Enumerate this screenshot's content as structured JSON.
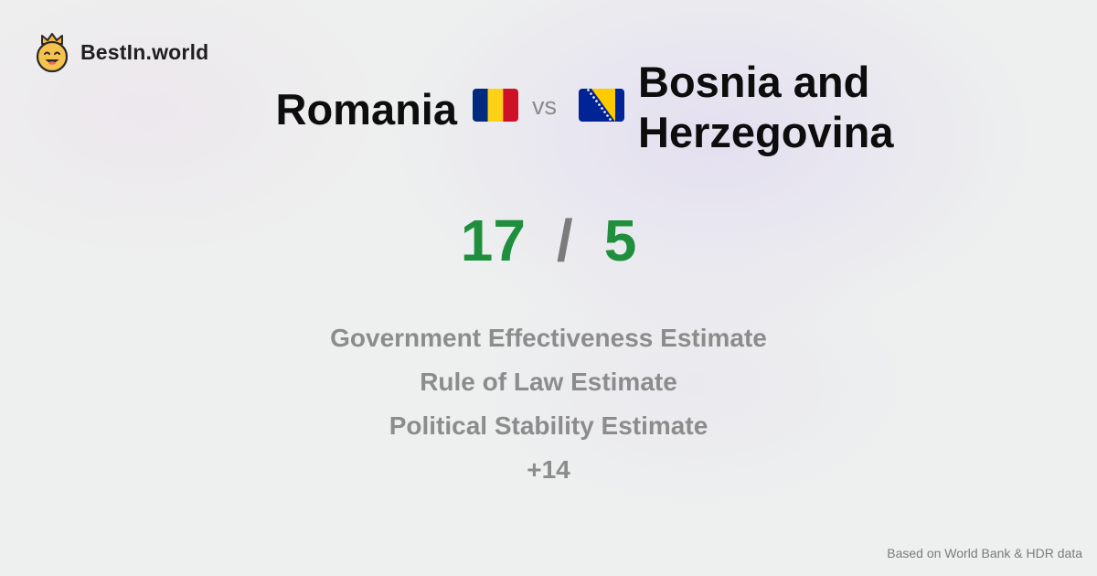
{
  "brand": {
    "name": "BestIn.world",
    "logo_icon": "crowned-smiley-icon"
  },
  "comparison": {
    "country1": {
      "name": "Romania",
      "flag_icon": "flag-romania-icon",
      "flag_colors": [
        "#002B7F",
        "#FCD116",
        "#CE1126"
      ]
    },
    "vs_label": "vs",
    "country2": {
      "name_line1": "Bosnia and",
      "name_line2": "Herzegovina",
      "flag_icon": "flag-bosnia-icon",
      "flag_colors": [
        "#002395",
        "#FECB00",
        "#FFFFFF"
      ]
    }
  },
  "score": {
    "country1": "17",
    "separator": "/",
    "country2": "5",
    "color": "#1f8f3e"
  },
  "metrics": [
    "Government Effectiveness Estimate",
    "Rule of Law Estimate",
    "Political Stability Estimate",
    "+14"
  ],
  "footer": {
    "source": "Based on World Bank & HDR data"
  }
}
